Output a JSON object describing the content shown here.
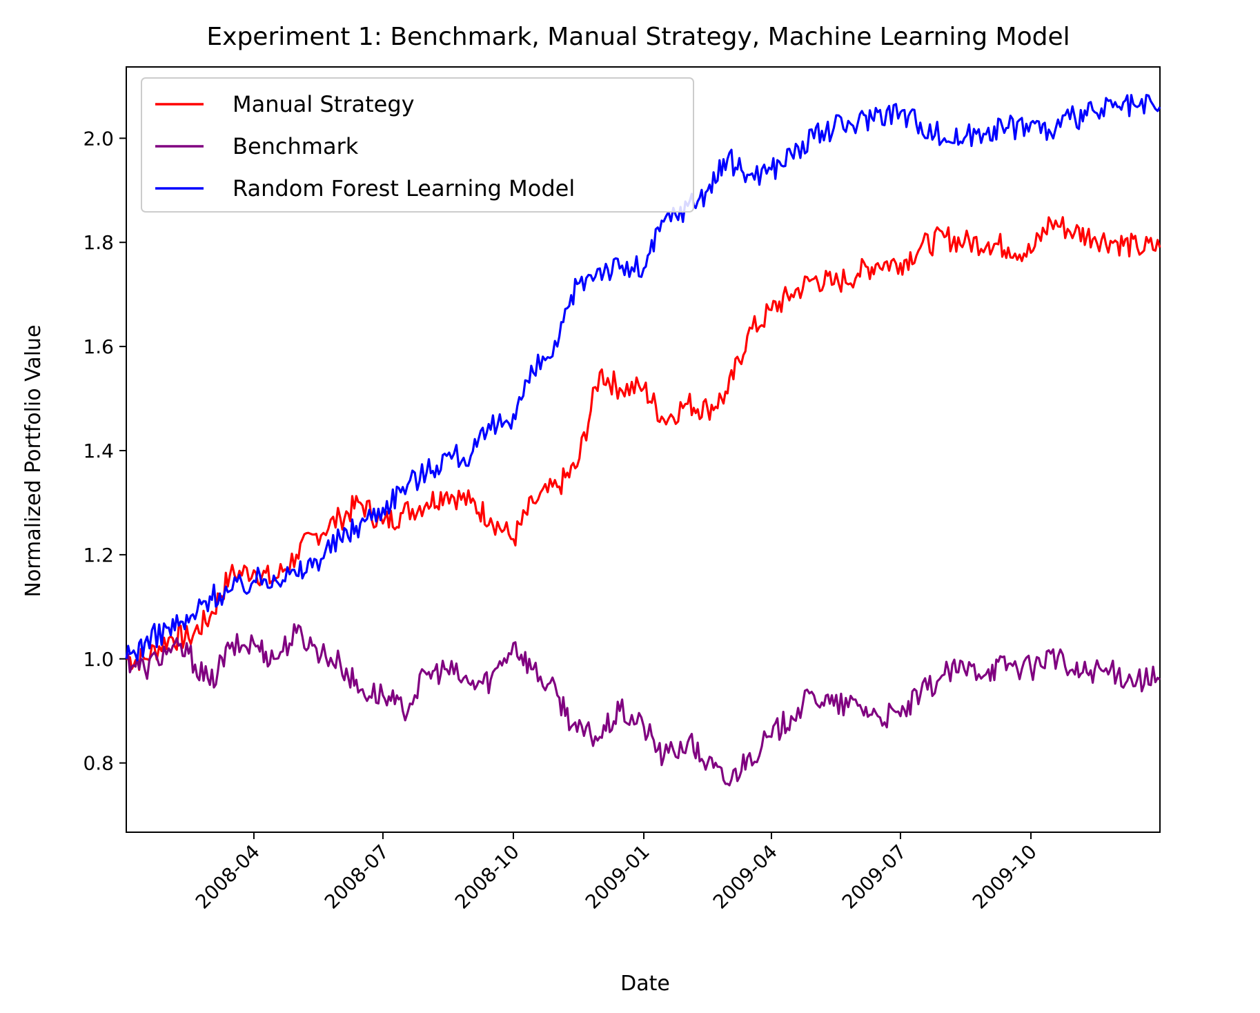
{
  "chart_data": {
    "type": "line",
    "title": "Experiment 1: Benchmark, Manual Strategy, Machine Learning Model",
    "xlabel": "Date",
    "ylabel": "Normalized Portfolio Value",
    "xlim": [
      "2008-01-02",
      "2009-12-31"
    ],
    "ylim": [
      0.667,
      2.137
    ],
    "x_ticks": [
      "2008-04",
      "2008-07",
      "2008-10",
      "2009-01",
      "2009-04",
      "2009-07",
      "2009-10"
    ],
    "y_ticks": [
      "0.8",
      "1.0",
      "1.2",
      "1.4",
      "1.6",
      "1.8",
      "2.0"
    ],
    "legend_position": "top-left",
    "series": [
      {
        "name": "Manual Strategy",
        "color": "#ff0000",
        "x": [
          "2008-01-02",
          "2008-01-15",
          "2008-02-01",
          "2008-02-15",
          "2008-03-01",
          "2008-03-15",
          "2008-04-01",
          "2008-04-15",
          "2008-05-01",
          "2008-05-15",
          "2008-06-01",
          "2008-06-15",
          "2008-07-01",
          "2008-07-15",
          "2008-08-01",
          "2008-08-15",
          "2008-09-01",
          "2008-09-15",
          "2008-10-01",
          "2008-10-15",
          "2008-11-01",
          "2008-11-15",
          "2008-12-01",
          "2008-12-15",
          "2009-01-01",
          "2009-01-15",
          "2009-02-01",
          "2009-02-15",
          "2009-03-01",
          "2009-03-15",
          "2009-04-01",
          "2009-04-15",
          "2009-05-01",
          "2009-05-15",
          "2009-06-01",
          "2009-06-15",
          "2009-07-01",
          "2009-07-15",
          "2009-08-01",
          "2009-08-15",
          "2009-09-01",
          "2009-09-15",
          "2009-10-01",
          "2009-10-15",
          "2009-11-01",
          "2009-11-15",
          "2009-12-01",
          "2009-12-15",
          "2009-12-31"
        ],
        "values": [
          1.0,
          1.0,
          1.04,
          1.04,
          1.08,
          1.16,
          1.17,
          1.15,
          1.2,
          1.24,
          1.27,
          1.3,
          1.26,
          1.28,
          1.3,
          1.32,
          1.3,
          1.27,
          1.23,
          1.3,
          1.33,
          1.37,
          1.55,
          1.52,
          1.52,
          1.46,
          1.49,
          1.48,
          1.51,
          1.62,
          1.67,
          1.7,
          1.73,
          1.72,
          1.74,
          1.76,
          1.76,
          1.79,
          1.81,
          1.8,
          1.8,
          1.79,
          1.78,
          1.84,
          1.82,
          1.81,
          1.8,
          1.79,
          1.79
        ]
      },
      {
        "name": "Benchmark",
        "color": "#800080",
        "x": [
          "2008-01-02",
          "2008-01-15",
          "2008-02-01",
          "2008-02-15",
          "2008-03-01",
          "2008-03-15",
          "2008-04-01",
          "2008-04-15",
          "2008-05-01",
          "2008-05-15",
          "2008-06-01",
          "2008-06-15",
          "2008-07-01",
          "2008-07-15",
          "2008-08-01",
          "2008-08-15",
          "2008-09-01",
          "2008-09-15",
          "2008-10-01",
          "2008-10-15",
          "2008-11-01",
          "2008-11-15",
          "2008-12-01",
          "2008-12-15",
          "2009-01-01",
          "2009-01-15",
          "2009-02-01",
          "2009-02-15",
          "2009-03-01",
          "2009-03-15",
          "2009-04-01",
          "2009-04-15",
          "2009-05-01",
          "2009-05-15",
          "2009-06-01",
          "2009-06-15",
          "2009-07-01",
          "2009-07-15",
          "2009-08-01",
          "2009-08-15",
          "2009-09-01",
          "2009-09-15",
          "2009-10-01",
          "2009-10-15",
          "2009-11-01",
          "2009-11-15",
          "2009-12-01",
          "2009-12-15",
          "2009-12-31"
        ],
        "values": [
          1.0,
          0.98,
          1.02,
          1.01,
          0.95,
          1.02,
          1.03,
          1.0,
          1.05,
          1.02,
          0.99,
          0.94,
          0.93,
          0.9,
          0.97,
          0.98,
          0.95,
          0.96,
          1.03,
          0.98,
          0.93,
          0.86,
          0.85,
          0.9,
          0.87,
          0.81,
          0.84,
          0.8,
          0.76,
          0.81,
          0.85,
          0.89,
          0.93,
          0.91,
          0.91,
          0.89,
          0.89,
          0.93,
          0.97,
          0.98,
          0.98,
          0.99,
          0.98,
          1.01,
          0.97,
          0.98,
          0.97,
          0.96,
          0.96
        ]
      },
      {
        "name": "Random Forest Learning Model",
        "color": "#0000ff",
        "x": [
          "2008-01-02",
          "2008-01-15",
          "2008-02-01",
          "2008-02-15",
          "2008-03-01",
          "2008-03-15",
          "2008-04-01",
          "2008-04-15",
          "2008-05-01",
          "2008-05-15",
          "2008-06-01",
          "2008-06-15",
          "2008-07-01",
          "2008-07-15",
          "2008-08-01",
          "2008-08-15",
          "2008-09-01",
          "2008-09-15",
          "2008-10-01",
          "2008-10-15",
          "2008-11-01",
          "2008-11-15",
          "2008-12-01",
          "2008-12-15",
          "2009-01-01",
          "2009-01-15",
          "2009-02-01",
          "2009-02-15",
          "2009-03-01",
          "2009-03-15",
          "2009-04-01",
          "2009-04-15",
          "2009-05-01",
          "2009-05-15",
          "2009-06-01",
          "2009-06-15",
          "2009-07-01",
          "2009-07-15",
          "2009-08-01",
          "2009-08-15",
          "2009-09-01",
          "2009-09-15",
          "2009-10-01",
          "2009-10-15",
          "2009-11-01",
          "2009-11-15",
          "2009-12-01",
          "2009-12-15",
          "2009-12-31"
        ],
        "values": [
          1.0,
          1.03,
          1.06,
          1.07,
          1.12,
          1.13,
          1.15,
          1.16,
          1.16,
          1.19,
          1.23,
          1.26,
          1.29,
          1.33,
          1.36,
          1.39,
          1.39,
          1.44,
          1.47,
          1.55,
          1.6,
          1.72,
          1.75,
          1.75,
          1.75,
          1.84,
          1.87,
          1.9,
          1.96,
          1.93,
          1.94,
          1.97,
          2.0,
          2.02,
          2.03,
          2.05,
          2.05,
          2.03,
          2.0,
          2.0,
          2.02,
          2.02,
          2.03,
          2.01,
          2.04,
          2.05,
          2.06,
          2.06,
          2.06
        ]
      }
    ]
  }
}
